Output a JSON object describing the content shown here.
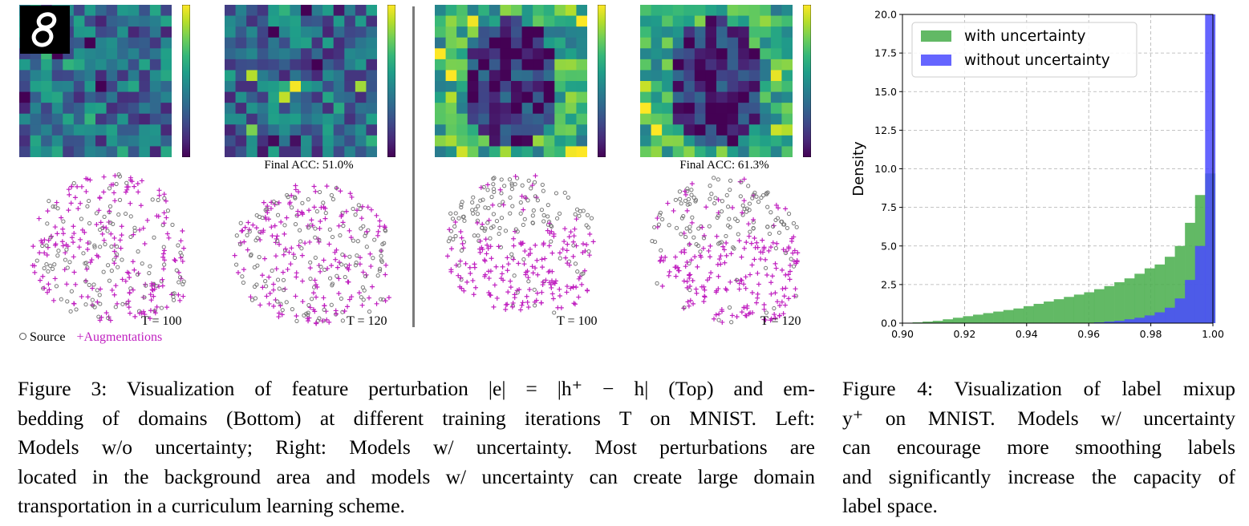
{
  "figure3": {
    "panels": [
      {
        "id": "left-1",
        "T_label": "T = 100",
        "acc_label": ""
      },
      {
        "id": "left-2",
        "T_label": "T = 120",
        "acc_label": "Final ACC: 51.0%"
      },
      {
        "id": "right-1",
        "T_label": "T = 100",
        "acc_label": ""
      },
      {
        "id": "right-2",
        "T_label": "T = 120",
        "acc_label": "Final ACC: 61.3%"
      }
    ],
    "legend": {
      "source": "Source",
      "augmentations": "+Augmentations"
    },
    "caption_lines": [
      "Figure 3: Visualization of feature perturbation |e| = |h⁺ − h| (Top) and em-",
      "bedding of domains (Bottom) at different training iterations T on MNIST. Left:",
      "Models w/o uncertainty; Right: Models w/ uncertainty. Most perturbations are",
      "located in the background area and models w/ uncertainty can create large domain",
      "transportation in a curriculum learning scheme."
    ]
  },
  "figure4": {
    "caption_lines": [
      "Figure 4: Visualization of label mixup",
      "y⁺ on MNIST. Models w/ uncertainty",
      "can encourage more smoothing labels",
      "and significantly increase the capacity of",
      "label space."
    ]
  },
  "chart_data": {
    "type": "bar",
    "title": "",
    "xlabel": "",
    "ylabel": "Density",
    "xlim": [
      0.9,
      1.0
    ],
    "ylim": [
      0,
      20
    ],
    "xticks": [
      "0.90",
      "0.92",
      "0.94",
      "0.96",
      "0.98",
      "1.00"
    ],
    "yticks": [
      "0.0",
      "2.5",
      "5.0",
      "7.5",
      "10.0",
      "12.5",
      "15.0",
      "17.5",
      "20.0"
    ],
    "grid": true,
    "legend_position": "top-left",
    "colors": {
      "with": "#4caf50",
      "without": "#4a4aff"
    },
    "series": [
      {
        "name": "with uncertainty",
        "bin_start": 0.9,
        "bin_width": 0.00325,
        "values": [
          0,
          0.05,
          0.1,
          0.15,
          0.25,
          0.35,
          0.45,
          0.55,
          0.65,
          0.75,
          0.85,
          0.95,
          1.1,
          1.25,
          1.4,
          1.55,
          1.7,
          1.85,
          2.0,
          2.2,
          2.4,
          2.65,
          2.9,
          3.2,
          3.55,
          3.8,
          4.3,
          5.0,
          6.5,
          8.3,
          9.7
        ]
      },
      {
        "name": "without uncertainty",
        "bin_start": 0.9,
        "bin_width": 0.00325,
        "values": [
          0,
          0,
          0,
          0,
          0,
          0,
          0,
          0,
          0,
          0,
          0,
          0,
          0,
          0,
          0,
          0,
          0,
          0,
          0,
          0.05,
          0.1,
          0.15,
          0.25,
          0.35,
          0.5,
          0.7,
          1.0,
          1.6,
          2.8,
          5.0,
          20.0
        ]
      }
    ]
  }
}
